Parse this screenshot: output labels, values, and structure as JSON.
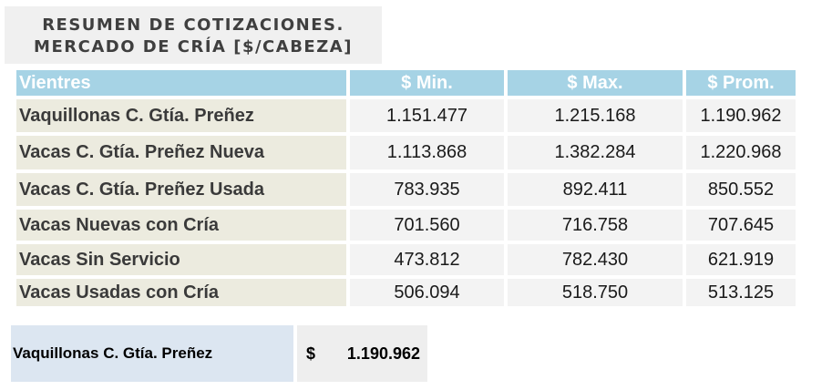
{
  "title": {
    "line1": "RESUMEN DE COTIZACIONES.",
    "line2": "MERCADO DE CRÍA [$/CABEZA]"
  },
  "table": {
    "headers": [
      "Vientres",
      "$ Min.",
      "$ Max.",
      "$ Prom."
    ],
    "rows": [
      [
        "Vaquillonas C. Gtía. Preñez",
        "1.151.477",
        "1.215.168",
        "1.190.962"
      ],
      [
        "Vacas C. Gtía. Preñez Nueva",
        "1.113.868",
        "1.382.284",
        "1.220.968"
      ],
      [
        "Vacas C. Gtía. Preñez Usada",
        "783.935",
        "892.411",
        "850.552"
      ],
      [
        "Vacas Nuevas con Cría",
        "701.560",
        "716.758",
        "707.645"
      ],
      [
        "Vacas Sin Servicio",
        "473.812",
        "782.430",
        "621.919"
      ],
      [
        "Vacas Usadas con Cría",
        "506.094",
        "518.750",
        "513.125"
      ]
    ]
  },
  "summary": {
    "label": "Vaquillonas C. Gtía. Preñez",
    "currency": "$",
    "value": "1.190.962"
  },
  "colors": {
    "header_bg": "#a6d3e5",
    "label_bg": "#ecebdf",
    "value_bg": "#f3f3f3",
    "summary_label_bg": "#dce6f1"
  }
}
